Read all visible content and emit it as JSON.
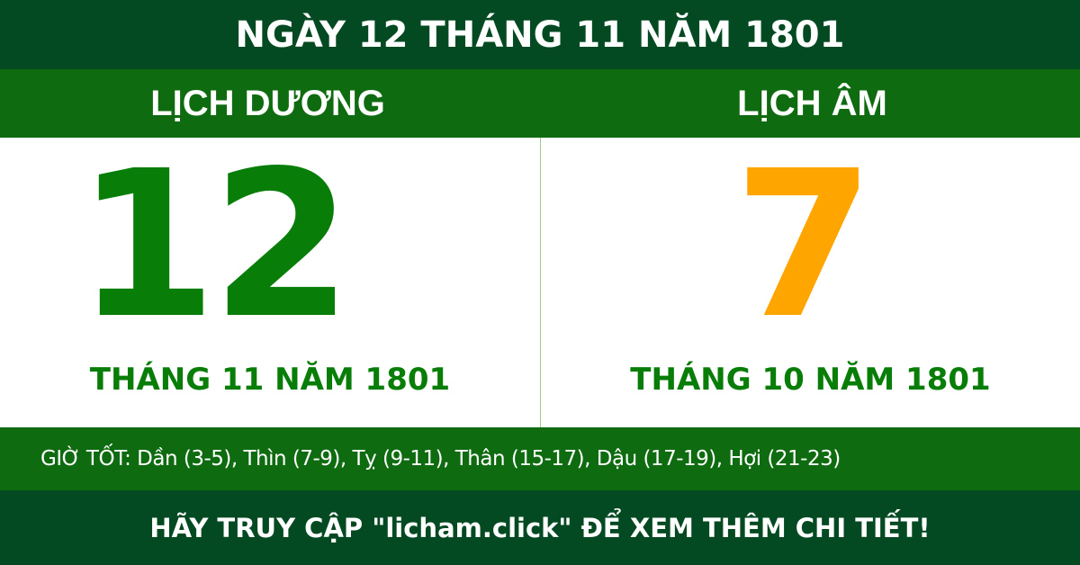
{
  "title": "NGÀY 12 THÁNG 11 NĂM 1801",
  "solar": {
    "heading": "LỊCH DƯƠNG",
    "day": "12",
    "month_year": "THÁNG 11 NĂM 1801"
  },
  "lunar": {
    "heading": "LỊCH ÂM",
    "day": "7",
    "month_year": "THÁNG 10 NĂM 1801"
  },
  "good_hours": "GIỜ TỐT: Dần (3-5), Thìn (7-9), Tỵ (9-11), Thân (15-17), Dậu (17-19), Hợi (21-23)",
  "footer": "HÃY TRUY CẬP \"licham.click\" ĐỂ XEM THÊM CHI TIẾT!",
  "colors": {
    "dark_green": "#034a22",
    "green": "#0f6b10",
    "solar_day": "#087d08",
    "lunar_day": "#ffa500"
  }
}
